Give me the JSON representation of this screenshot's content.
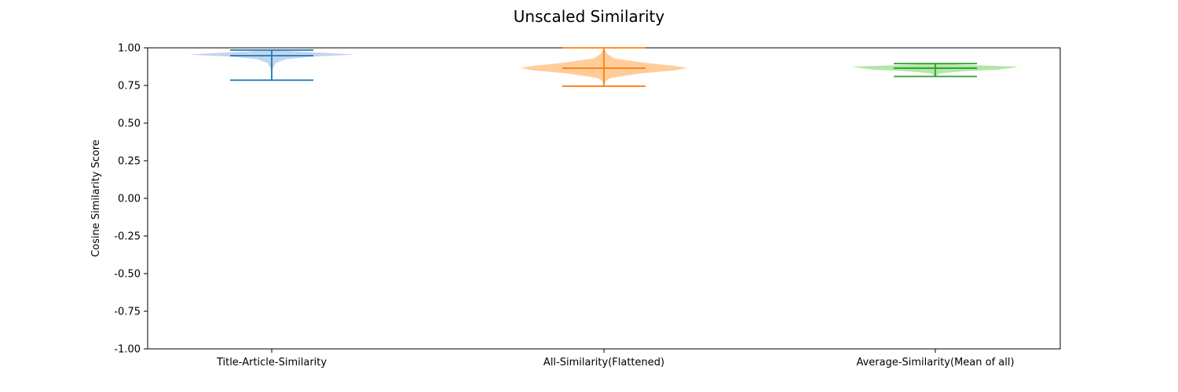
{
  "chart_data": {
    "type": "violin",
    "title": "Unscaled Similarity",
    "ylabel": "Cosine Similarity Score",
    "xlabel": "",
    "ylim": [
      -1.0,
      1.0
    ],
    "yticks": [
      "-1.00",
      "-0.75",
      "-0.50",
      "-0.25",
      "0.00",
      "0.25",
      "0.50",
      "0.75",
      "1.00"
    ],
    "grid": false,
    "series": [
      {
        "name": "Title-Article-Similarity",
        "color": "#1f77b4",
        "fill": "#aec7e8",
        "min": 0.785,
        "max": 0.985,
        "median": 0.948,
        "density": [
          [
            0.785,
            0.0
          ],
          [
            0.86,
            0.01
          ],
          [
            0.9,
            0.05
          ],
          [
            0.925,
            0.18
          ],
          [
            0.94,
            0.45
          ],
          [
            0.955,
            1.0
          ],
          [
            0.965,
            0.7
          ],
          [
            0.975,
            0.3
          ],
          [
            0.985,
            0.0
          ]
        ]
      },
      {
        "name": "All-Similarity(Flattened)",
        "color": "#ff7f0e",
        "fill": "#ffbb78",
        "min": 0.745,
        "max": 1.0,
        "median": 0.865,
        "density": [
          [
            0.745,
            0.0
          ],
          [
            0.78,
            0.02
          ],
          [
            0.8,
            0.08
          ],
          [
            0.83,
            0.45
          ],
          [
            0.85,
            0.85
          ],
          [
            0.865,
            1.0
          ],
          [
            0.88,
            0.85
          ],
          [
            0.9,
            0.5
          ],
          [
            0.93,
            0.12
          ],
          [
            0.96,
            0.04
          ],
          [
            0.99,
            0.005
          ],
          [
            1.0,
            0.0
          ]
        ]
      },
      {
        "name": "Average-Similarity(Mean of all)",
        "color": "#2ca02c",
        "fill": "#98df8a",
        "min": 0.81,
        "max": 0.895,
        "median": 0.865,
        "density": [
          [
            0.81,
            0.0
          ],
          [
            0.83,
            0.05
          ],
          [
            0.845,
            0.35
          ],
          [
            0.855,
            0.75
          ],
          [
            0.865,
            0.9
          ],
          [
            0.875,
            1.0
          ],
          [
            0.885,
            0.45
          ],
          [
            0.895,
            0.0
          ]
        ]
      }
    ]
  }
}
